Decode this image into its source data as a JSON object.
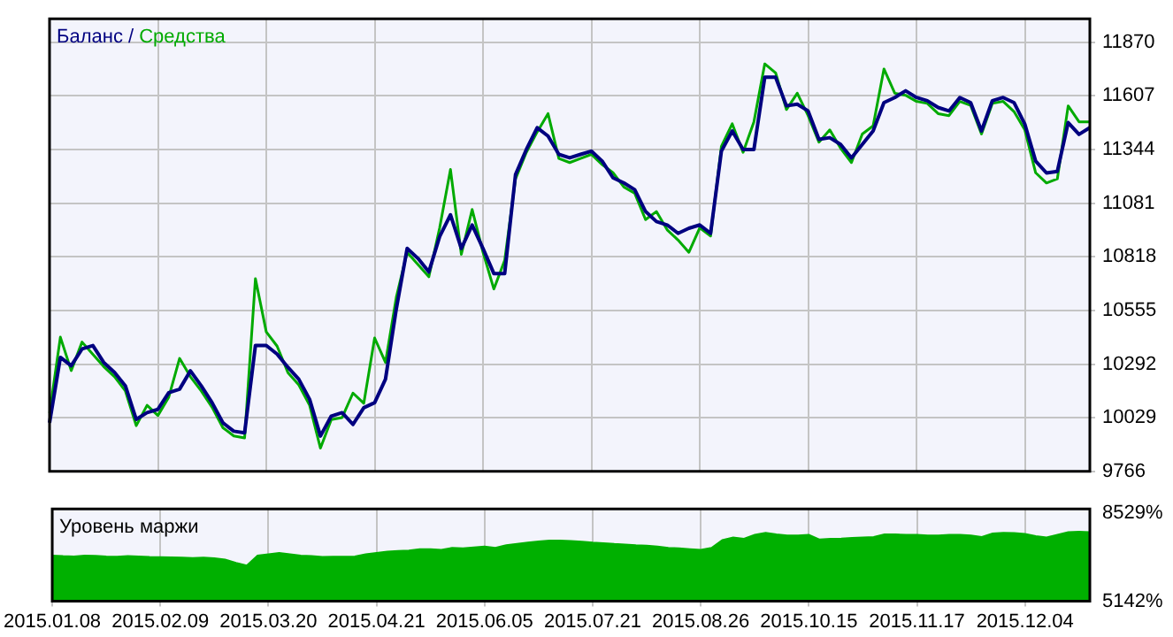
{
  "chart_data": [
    {
      "type": "line",
      "categories": [
        "2015.01.08",
        null,
        null,
        null,
        null,
        null,
        null,
        null,
        null,
        null,
        "2015.02.09",
        null,
        null,
        null,
        null,
        null,
        null,
        null,
        null,
        null,
        "2015.03.20",
        null,
        null,
        null,
        null,
        null,
        null,
        null,
        null,
        null,
        "2015.04.21",
        null,
        null,
        null,
        null,
        null,
        null,
        null,
        null,
        null,
        "2015.06.05",
        null,
        null,
        null,
        null,
        null,
        null,
        null,
        null,
        null,
        "2015.07.21",
        null,
        null,
        null,
        null,
        null,
        null,
        null,
        null,
        null,
        "2015.08.26",
        null,
        null,
        null,
        null,
        null,
        null,
        null,
        null,
        null,
        "2015.10.15",
        null,
        null,
        null,
        null,
        null,
        null,
        null,
        null,
        null,
        "2015.11.17",
        null,
        null,
        null,
        null,
        null,
        null,
        null,
        null,
        null,
        "2015.12.04",
        null,
        null,
        null,
        null,
        null,
        null
      ],
      "series": [
        {
          "name": "Баланс",
          "color": "#000080",
          "values": [
            10004,
            10325,
            10284,
            10366,
            10383,
            10300,
            10251,
            10185,
            10021,
            10054,
            10070,
            10152,
            10169,
            10259,
            10185,
            10103,
            10004,
            9963,
            9955,
            10383,
            10383,
            10341,
            10276,
            10218,
            10119,
            9939,
            10037,
            10054,
            9996,
            10078,
            10103,
            10218,
            10563,
            10859,
            10810,
            10744,
            10917,
            11024,
            10859,
            10974,
            10859,
            10736,
            10736,
            11221,
            11344,
            11451,
            11410,
            11320,
            11303,
            11320,
            11336,
            11287,
            11205,
            11180,
            11147,
            11040,
            10991,
            10974,
            10933,
            10958,
            10974,
            10933,
            11336,
            11435,
            11344,
            11344,
            11698,
            11698,
            11558,
            11566,
            11533,
            11394,
            11402,
            11369,
            11303,
            11369,
            11435,
            11574,
            11599,
            11632,
            11599,
            11583,
            11550,
            11533,
            11599,
            11574,
            11435,
            11583,
            11599,
            11574,
            11468,
            11287,
            11229,
            11237,
            11476,
            11418,
            11451
          ]
        },
        {
          "name": "Средства",
          "color": "#00aa00",
          "values": [
            10050,
            10424,
            10260,
            10400,
            10340,
            10280,
            10230,
            10160,
            9990,
            10090,
            10040,
            10130,
            10320,
            10230,
            10160,
            10080,
            9980,
            9940,
            9930,
            10711,
            10450,
            10380,
            10250,
            10190,
            10090,
            9880,
            10020,
            10030,
            10150,
            10100,
            10420,
            10300,
            10620,
            10840,
            10780,
            10720,
            10960,
            11246,
            10830,
            11050,
            10840,
            10660,
            10800,
            11200,
            11330,
            11430,
            11520,
            11300,
            11280,
            11300,
            11320,
            11270,
            11230,
            11160,
            11130,
            11000,
            11040,
            10950,
            10900,
            10840,
            10960,
            10920,
            11360,
            11470,
            11330,
            11480,
            11764,
            11720,
            11540,
            11620,
            11510,
            11380,
            11440,
            11350,
            11280,
            11420,
            11460,
            11739,
            11620,
            11610,
            11580,
            11570,
            11520,
            11510,
            11580,
            11560,
            11420,
            11570,
            11580,
            11530,
            11440,
            11230,
            11180,
            11200,
            11558,
            11480,
            11480
          ]
        }
      ],
      "ylim": [
        9766,
        11985
      ],
      "yticks": [
        9766,
        10029,
        10292,
        10555,
        10818,
        11081,
        11344,
        11607,
        11870
      ],
      "grid": true,
      "legend": "top left",
      "marker": "none",
      "tick_labels": "y",
      "annotations": [
        "/"
      ]
    },
    {
      "type": "area",
      "title": "Уровень маржи",
      "categories": [
        "2015.01.08",
        null,
        null,
        null,
        null,
        null,
        null,
        null,
        null,
        null,
        "2015.02.09",
        null,
        null,
        null,
        null,
        null,
        null,
        null,
        null,
        null,
        "2015.03.20",
        null,
        null,
        null,
        null,
        null,
        null,
        null,
        null,
        null,
        "2015.04.21",
        null,
        null,
        null,
        null,
        null,
        null,
        null,
        null,
        null,
        "2015.06.05",
        null,
        null,
        null,
        null,
        null,
        null,
        null,
        null,
        null,
        "2015.07.21",
        null,
        null,
        null,
        null,
        null,
        null,
        null,
        null,
        null,
        "2015.08.26",
        null,
        null,
        null,
        null,
        null,
        null,
        null,
        null,
        null,
        "2015.10.15",
        null,
        null,
        null,
        null,
        null,
        null,
        null,
        null,
        null,
        "2015.11.17",
        null,
        null,
        null,
        null,
        null,
        null,
        null,
        null,
        null,
        "2015.12.04",
        null,
        null,
        null,
        null,
        null,
        null
      ],
      "series": [
        {
          "color": "#00b000",
          "values": [
            6900,
            6880,
            6870,
            6900,
            6890,
            6870,
            6860,
            6880,
            6870,
            6850,
            6840,
            6830,
            6820,
            6810,
            6820,
            6800,
            6750,
            6620,
            6520,
            6900,
            6950,
            7000,
            6950,
            6900,
            6880,
            6850,
            6860,
            6860,
            6870,
            6950,
            7000,
            7050,
            7080,
            7100,
            7150,
            7150,
            7120,
            7200,
            7180,
            7220,
            7250,
            7200,
            7300,
            7350,
            7400,
            7450,
            7480,
            7480,
            7460,
            7440,
            7400,
            7380,
            7350,
            7330,
            7300,
            7280,
            7250,
            7200,
            7180,
            7150,
            7120,
            7200,
            7500,
            7600,
            7550,
            7700,
            7780,
            7720,
            7680,
            7680,
            7700,
            7520,
            7550,
            7560,
            7580,
            7600,
            7620,
            7720,
            7720,
            7700,
            7700,
            7680,
            7680,
            7700,
            7700,
            7680,
            7620,
            7750,
            7780,
            7770,
            7740,
            7650,
            7600,
            7700,
            7800,
            7820,
            7800
          ]
        }
      ],
      "ylim": [
        5142,
        8700
      ],
      "yticks": [
        {
          "value": 5142,
          "label": "5142%"
        },
        {
          "value": 8529,
          "label": "8529%"
        }
      ],
      "grid": "x",
      "marker": "none"
    }
  ]
}
